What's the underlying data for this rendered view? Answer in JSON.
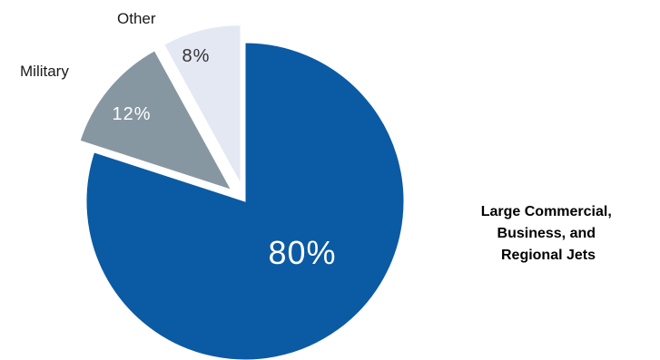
{
  "chart_data": {
    "type": "pie",
    "slices": [
      {
        "label_lines": [
          "Large Commercial,",
          "Business, and",
          "Regional Jets"
        ],
        "value": 80,
        "value_label": "80%",
        "color": "#0b5aa4",
        "value_text_color": "#ffffff"
      },
      {
        "label_lines": [
          "Military"
        ],
        "value": 12,
        "value_label": "12%",
        "color": "#8797a2",
        "value_text_color": "#ffffff"
      },
      {
        "label_lines": [
          "Other"
        ],
        "value": 8,
        "value_label": "8%",
        "color": "#e3e8f3",
        "value_text_color": "#333333"
      }
    ],
    "exploded_slices": [
      "Military",
      "Other"
    ],
    "legend": "none"
  }
}
